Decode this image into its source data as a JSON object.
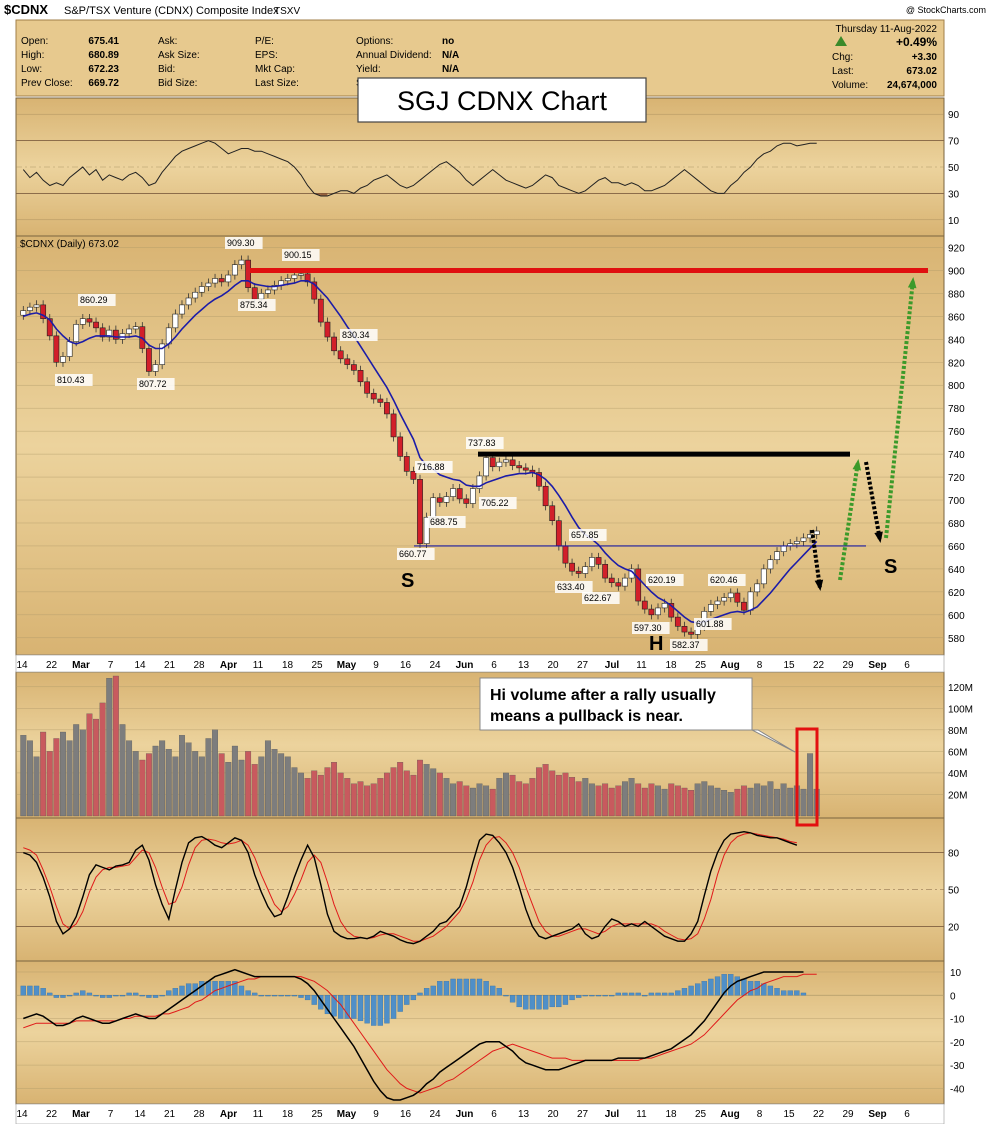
{
  "header": {
    "symbol": "$CDNX",
    "name": "S&P/TSX Venture (CDNX) Composite Index",
    "exchange": "TSXV",
    "date": "Thursday  11-Aug-2022",
    "watermark": "@ StockCharts.com",
    "stats": [
      {
        "label": "Open:",
        "value": "675.41"
      },
      {
        "label": "High:",
        "value": "680.89"
      },
      {
        "label": "Low:",
        "value": "672.23"
      },
      {
        "label": "Prev Close:",
        "value": "669.72"
      }
    ],
    "bid_labels": [
      "Ask:",
      "Ask Size:",
      "Bid:",
      "Bid Size:"
    ],
    "fundamental_labels": [
      "P/E:",
      "EPS:",
      "Mkt Cap:",
      "Last Size:"
    ],
    "options": [
      {
        "label": "Options:",
        "value": "no"
      },
      {
        "label": "Annual Dividend:",
        "value": "N/A"
      },
      {
        "label": "Yield:",
        "value": "N/A"
      },
      {
        "label": "S",
        "value": ""
      }
    ],
    "change_pct": "+0.49%",
    "right_stats": [
      {
        "label": "Chg:",
        "value": "+3.30"
      },
      {
        "label": "Last:",
        "value": "673.02"
      },
      {
        "label": "Volume:",
        "value": "24,674,000"
      }
    ]
  },
  "annotations": {
    "title_box": "SGJ CDNX Chart",
    "price_legend": "$CDNX (Daily) 673.02",
    "volume_callout": [
      "Hi volume after a rally usually",
      "means a pullback is near."
    ],
    "s_left": "S",
    "head": "H",
    "s_right": "S"
  },
  "colors": {
    "panel_bg": "#e6c68a",
    "up_vol": "#7d7d7d",
    "down_vol": "#c85a5e",
    "ma": "#1c1ca8",
    "resistance": "#e01010",
    "neckline": "#1a1aa0",
    "green_arrow": "#3c9a2a",
    "hist": "#4f8fc8"
  },
  "chart_data": {
    "type": "line",
    "ticker": "$CDNX",
    "x_ticks": [
      "14",
      "22",
      "Mar",
      "7",
      "14",
      "21",
      "28",
      "Apr",
      "11",
      "18",
      "25",
      "May",
      "9",
      "16",
      "24",
      "Jun",
      "6",
      "13",
      "20",
      "27",
      "Jul",
      "11",
      "18",
      "25",
      "Aug",
      "8",
      "15",
      "22",
      "29",
      "Sep",
      "6"
    ],
    "price": {
      "ylim": [
        565,
        930
      ],
      "yticks": [
        580,
        600,
        620,
        640,
        660,
        680,
        700,
        720,
        740,
        760,
        780,
        800,
        820,
        840,
        860,
        880,
        900,
        920
      ],
      "closes": [
        865,
        868,
        870,
        858,
        843,
        820,
        825,
        838,
        853,
        858,
        855,
        850,
        842,
        848,
        840,
        845,
        849,
        851,
        832,
        812,
        818,
        836,
        850,
        862,
        870,
        876,
        881,
        886,
        889,
        893,
        890,
        896,
        905,
        909,
        885,
        875,
        880,
        883,
        887,
        891,
        893,
        896,
        897,
        890,
        875,
        855,
        842,
        830,
        823,
        818,
        813,
        803,
        793,
        788,
        785,
        775,
        755,
        738,
        725,
        718,
        662,
        685,
        702,
        698,
        703,
        710,
        701,
        697,
        710,
        721,
        737,
        729,
        733,
        735,
        730,
        728,
        726,
        724,
        712,
        695,
        682,
        660,
        645,
        638,
        636,
        642,
        650,
        644,
        632,
        628,
        625,
        632,
        640,
        612,
        605,
        600,
        606,
        610,
        598,
        590,
        585,
        583,
        590,
        603,
        609,
        612,
        615,
        619,
        611,
        604,
        620,
        627,
        640,
        648,
        655,
        660,
        662,
        664,
        667,
        670,
        673
      ],
      "ma_values": [
        860,
        862,
        863,
        861,
        857,
        849,
        843,
        838,
        836,
        838,
        841,
        843,
        843,
        843,
        842,
        842,
        842,
        843,
        841,
        835,
        832,
        832,
        836,
        842,
        849,
        855,
        861,
        866,
        871,
        875,
        878,
        882,
        887,
        891,
        891,
        888,
        887,
        886,
        886,
        887,
        888,
        889,
        891,
        891,
        888,
        882,
        876,
        868,
        860,
        851,
        843,
        834,
        825,
        816,
        807,
        798,
        787,
        775,
        764,
        753,
        737,
        730,
        727,
        722,
        720,
        718,
        717,
        713,
        712,
        712,
        715,
        717,
        719,
        721,
        722,
        723,
        723,
        724,
        722,
        718,
        712,
        704,
        695,
        685,
        676,
        670,
        666,
        661,
        654,
        648,
        643,
        640,
        638,
        632,
        626,
        620,
        615,
        612,
        608,
        603,
        598,
        594,
        593,
        594,
        596,
        598,
        600,
        602,
        603,
        602,
        604,
        607,
        613,
        619,
        626,
        633,
        640,
        646,
        652,
        658,
        664
      ],
      "labels": [
        {
          "text": "810.43",
          "value": 810.43
        },
        {
          "text": "860.29",
          "value": 860.29
        },
        {
          "text": "807.72",
          "value": 807.72
        },
        {
          "text": "909.30",
          "value": 909.3
        },
        {
          "text": "875.34",
          "value": 875.34
        },
        {
          "text": "900.15",
          "value": 900.15
        },
        {
          "text": "830.34",
          "value": 830.34
        },
        {
          "text": "660.77",
          "value": 660.77
        },
        {
          "text": "716.88",
          "value": 716.88
        },
        {
          "text": "688.75",
          "value": 688.75
        },
        {
          "text": "737.83",
          "value": 737.83
        },
        {
          "text": "705.22",
          "value": 705.22
        },
        {
          "text": "657.85",
          "value": 657.85
        },
        {
          "text": "633.40",
          "value": 633.4
        },
        {
          "text": "622.67",
          "value": 622.67
        },
        {
          "text": "620.19",
          "value": 620.19
        },
        {
          "text": "597.30",
          "value": 597.3
        },
        {
          "text": "582.37",
          "value": 582.37
        },
        {
          "text": "620.46",
          "value": 620.46
        },
        {
          "text": "601.88",
          "value": 601.88
        }
      ],
      "resistance_level": 900,
      "black_line_level": 740,
      "neckline_level": 660
    },
    "rsi": {
      "ylim": [
        0,
        100
      ],
      "yticks": [
        10,
        30,
        50,
        70,
        90
      ],
      "values": [
        48,
        42,
        46,
        40,
        36,
        38,
        36,
        42,
        46,
        50,
        44,
        48,
        40,
        44,
        42,
        40,
        44,
        46,
        42,
        36,
        38,
        46,
        52,
        58,
        62,
        64,
        66,
        68,
        70,
        68,
        64,
        60,
        62,
        64,
        64,
        62,
        62,
        60,
        58,
        56,
        54,
        50,
        44,
        36,
        30,
        28,
        28,
        30,
        32,
        32,
        30,
        34,
        36,
        40,
        42,
        44,
        40,
        36,
        34,
        36,
        40,
        44,
        48,
        52,
        54,
        50,
        46,
        40,
        36,
        40,
        44,
        48,
        44,
        40,
        38,
        36,
        34,
        36,
        40,
        44,
        42,
        36,
        34,
        32,
        30,
        32,
        36,
        40,
        42,
        38,
        38,
        36,
        38,
        36,
        32,
        32,
        34,
        36,
        40,
        44,
        48,
        44,
        40,
        36,
        32,
        30,
        30,
        36,
        40,
        46,
        50,
        56,
        60,
        62,
        66,
        68,
        68,
        66,
        67,
        68,
        68
      ],
      "oversold": 30,
      "overbought": 70
    },
    "volume": {
      "unit": "M",
      "ylim": [
        0,
        130
      ],
      "yticks": [
        "20M",
        "40M",
        "60M",
        "80M",
        "100M",
        "120M"
      ],
      "values": [
        75,
        70,
        55,
        78,
        60,
        72,
        78,
        70,
        85,
        80,
        95,
        90,
        105,
        128,
        130,
        85,
        70,
        60,
        52,
        58,
        65,
        70,
        62,
        55,
        75,
        68,
        60,
        55,
        72,
        80,
        58,
        50,
        65,
        52,
        60,
        48,
        55,
        70,
        62,
        58,
        55,
        45,
        40,
        35,
        42,
        38,
        45,
        50,
        40,
        35,
        30,
        32,
        28,
        30,
        35,
        40,
        45,
        50,
        42,
        38,
        52,
        48,
        44,
        40,
        35,
        30,
        32,
        28,
        26,
        30,
        28,
        25,
        35,
        40,
        38,
        32,
        30,
        35,
        45,
        48,
        42,
        38,
        40,
        36,
        32,
        35,
        30,
        28,
        30,
        26,
        28,
        32,
        35,
        30,
        26,
        30,
        28,
        25,
        30,
        28,
        26,
        24,
        30,
        32,
        28,
        26,
        24,
        22,
        25,
        28,
        26,
        30,
        28,
        32,
        25,
        30,
        26,
        28,
        25,
        58,
        25
      ],
      "highlight_values": [
        58,
        25
      ]
    },
    "stochastic": {
      "ylim": [
        0,
        100
      ],
      "yticks": [
        20,
        50,
        80
      ],
      "k": [
        80,
        78,
        72,
        60,
        44,
        24,
        14,
        18,
        28,
        44,
        62,
        70,
        68,
        66,
        69,
        70,
        72,
        82,
        86,
        74,
        54,
        38,
        26,
        50,
        72,
        88,
        92,
        93,
        90,
        86,
        84,
        88,
        92,
        90,
        80,
        62,
        48,
        36,
        28,
        30,
        44,
        60,
        74,
        86,
        76,
        54,
        30,
        16,
        12,
        10,
        10,
        11,
        10,
        12,
        16,
        14,
        12,
        9,
        7,
        6,
        8,
        12,
        16,
        22,
        24,
        30,
        36,
        52,
        72,
        90,
        95,
        94,
        88,
        80,
        68,
        52,
        34,
        20,
        12,
        10,
        12,
        14,
        16,
        18,
        22,
        14,
        10,
        12,
        20,
        26,
        24,
        20,
        22,
        20,
        24,
        20,
        16,
        12,
        10,
        8,
        8,
        14,
        24,
        45,
        65,
        80,
        90,
        95,
        96,
        97,
        96,
        94,
        93,
        92,
        92,
        90,
        88,
        86
      ],
      "d": [
        84,
        82,
        78,
        66,
        52,
        36,
        22,
        18,
        22,
        32,
        48,
        60,
        66,
        68,
        68,
        69,
        70,
        76,
        82,
        80,
        68,
        52,
        38,
        40,
        52,
        70,
        84,
        90,
        91,
        90,
        88,
        87,
        88,
        90,
        86,
        76,
        62,
        50,
        38,
        32,
        36,
        46,
        58,
        72,
        78,
        72,
        56,
        38,
        24,
        16,
        12,
        11,
        10,
        11,
        13,
        14,
        14,
        12,
        10,
        8,
        8,
        10,
        12,
        16,
        20,
        26,
        32,
        42,
        56,
        74,
        86,
        92,
        93,
        88,
        80,
        68,
        52,
        38,
        24,
        16,
        12,
        12,
        14,
        16,
        18,
        18,
        16,
        14,
        16,
        20,
        22,
        22,
        22,
        22,
        22,
        22,
        20,
        16,
        13,
        10,
        9,
        10,
        14,
        26,
        42,
        62,
        78,
        88,
        93,
        95,
        96,
        95,
        94,
        93,
        92,
        91,
        89,
        88
      ]
    },
    "macd": {
      "ylim": [
        -45,
        13
      ],
      "yticks": [
        10,
        0,
        -10,
        -20,
        -30,
        -40
      ],
      "macd": [
        -10,
        -9,
        -8,
        -9,
        -11,
        -13,
        -13,
        -12,
        -10,
        -9,
        -10,
        -11,
        -12,
        -12,
        -11,
        -10,
        -9,
        -8,
        -9,
        -10,
        -10,
        -8,
        -6,
        -4,
        -2,
        0,
        2,
        4,
        6,
        8,
        9,
        10,
        11,
        10,
        9,
        8,
        8,
        8,
        8,
        8,
        8,
        8,
        7,
        5,
        2,
        -2,
        -6,
        -10,
        -14,
        -18,
        -22,
        -27,
        -32,
        -37,
        -41,
        -44,
        -45,
        -45,
        -44,
        -43,
        -41,
        -38,
        -36,
        -33,
        -31,
        -29,
        -27,
        -25,
        -23,
        -21,
        -20,
        -20,
        -20,
        -22,
        -24,
        -27,
        -29,
        -30,
        -31,
        -32,
        -32,
        -32,
        -31,
        -30,
        -29,
        -28,
        -28,
        -28,
        -28,
        -28,
        -27,
        -27,
        -27,
        -27,
        -27,
        -26,
        -25,
        -24,
        -23,
        -21,
        -19,
        -17,
        -14,
        -11,
        -7,
        -3,
        1,
        4,
        6,
        7,
        8,
        9,
        10,
        10,
        10,
        10,
        10,
        10,
        10
      ],
      "signal": [
        -14,
        -13,
        -12,
        -12,
        -12,
        -12,
        -12,
        -12,
        -11,
        -11,
        -11,
        -11,
        -11,
        -11,
        -11,
        -10,
        -10,
        -9,
        -9,
        -9,
        -9,
        -8,
        -8,
        -7,
        -6,
        -5,
        -3,
        -2,
        0,
        2,
        3,
        4,
        5,
        6,
        7,
        7,
        8,
        8,
        8,
        8,
        8,
        8,
        8,
        7,
        6,
        4,
        2,
        -1,
        -4,
        -8,
        -12,
        -16,
        -20,
        -24,
        -28,
        -32,
        -35,
        -38,
        -40,
        -41,
        -42,
        -41,
        -40,
        -39,
        -37,
        -36,
        -34,
        -32,
        -30,
        -28,
        -26,
        -24,
        -23,
        -22,
        -21,
        -22,
        -23,
        -24,
        -25,
        -26,
        -27,
        -27,
        -27,
        -28,
        -28,
        -28,
        -28,
        -28,
        -28,
        -28,
        -28,
        -28,
        -28,
        -28,
        -27,
        -27,
        -26,
        -25,
        -24,
        -23,
        -22,
        -21,
        -19,
        -17,
        -14,
        -11,
        -8,
        -5,
        -2,
        0,
        2,
        3,
        5,
        6,
        7,
        8,
        8,
        8,
        9,
        9,
        9
      ]
    }
  }
}
